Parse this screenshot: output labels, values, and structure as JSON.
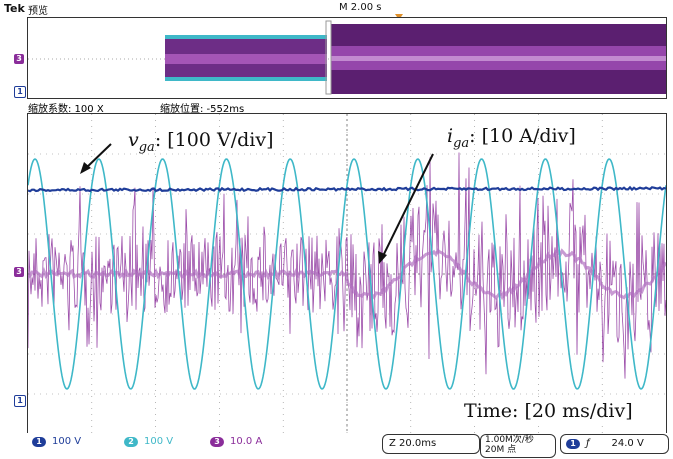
{
  "header": {
    "brand": "Tek",
    "mode": "预览",
    "timebase": "M 2.00 s"
  },
  "zoom": {
    "factor": "缩放系数: 100 X",
    "position": "缩放位置: -552ms"
  },
  "annotations": {
    "vga_var": "v",
    "vga_sub": "ga",
    "vga_scale": ": [100 V/div]",
    "iga_var": "i",
    "iga_sub": "ga",
    "iga_scale": ": [10 A/div]",
    "time": "Time: [20 ms/div]"
  },
  "channel_markers": {
    "overview_ch3": "3",
    "overview_ch1": "1",
    "main_ch3": "3",
    "main_ch1": "1"
  },
  "bottom": {
    "ch1_num": "1",
    "ch1_scale": "100 V",
    "ch2_num": "2",
    "ch2_scale": "100 V",
    "ch3_num": "3",
    "ch3_scale": "10.0 A",
    "zoom_time": "Z 20.0ms",
    "sample_rate": "1.00M次/秒",
    "record_length": "20M 点",
    "trig_ch": "1",
    "trig_slope": "ƒ",
    "trig_level": "24.0 V"
  },
  "colors": {
    "ch1": "#1f3d99",
    "ch2": "#3fb8c8",
    "ch3": "#8a2d9a",
    "grid": "#888888"
  }
}
